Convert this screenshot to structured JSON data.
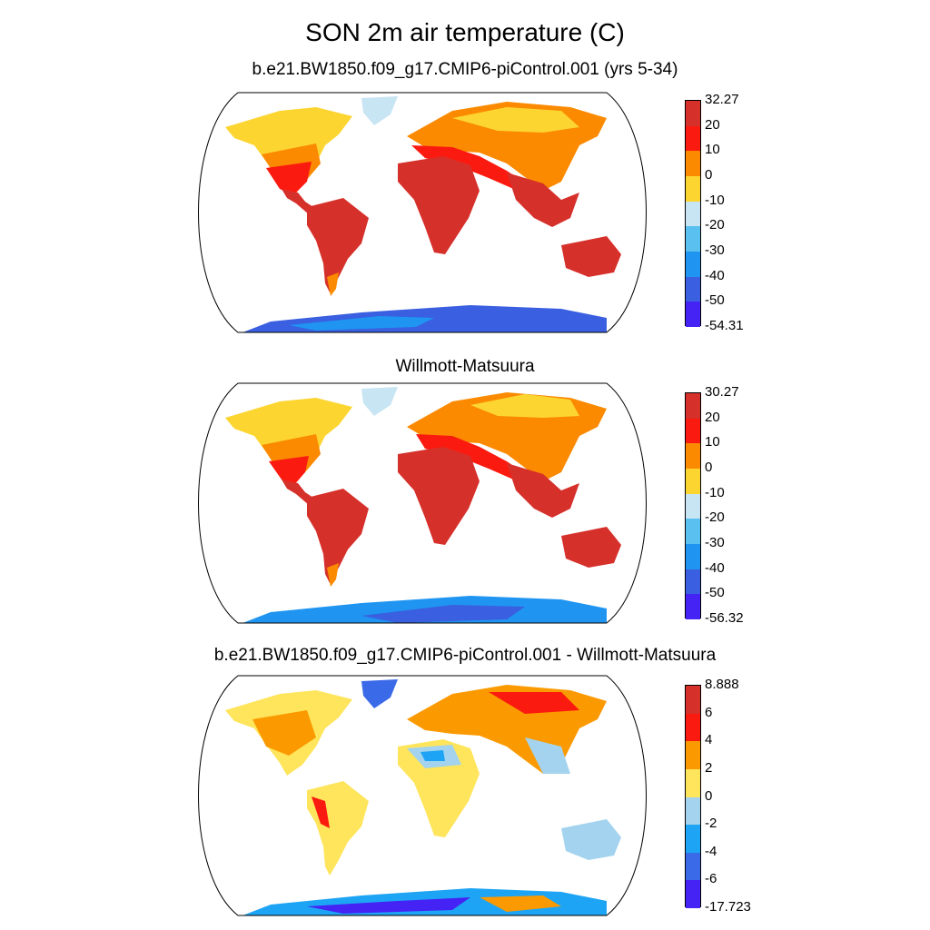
{
  "title": "SON 2m air temperature (C)",
  "panels": [
    {
      "subtitle": "b.e21.BW1850.f09_g17.CMIP6-piControl.001 (yrs 5-34)",
      "colorbar": {
        "labels": [
          "32.27",
          "20",
          "10",
          "0",
          "-10",
          "-20",
          "-30",
          "-40",
          "-50",
          "-54.31"
        ],
        "colors": [
          "#d6302b",
          "#fb1a0f",
          "#fb8a00",
          "#fdd531",
          "#c8e5f4",
          "#5ac0f0",
          "#1f95f1",
          "#3a5fe0",
          "#4423f4"
        ]
      }
    },
    {
      "subtitle": "Willmott-Matsuura",
      "colorbar": {
        "labels": [
          "30.27",
          "20",
          "10",
          "0",
          "-10",
          "-20",
          "-30",
          "-40",
          "-50",
          "-56.32"
        ],
        "colors": [
          "#d6302b",
          "#fb1a0f",
          "#fb8a00",
          "#fdd531",
          "#c8e5f4",
          "#5ac0f0",
          "#1f95f1",
          "#3a5fe0",
          "#4423f4"
        ]
      }
    },
    {
      "subtitle": "b.e21.BW1850.f09_g17.CMIP6-piControl.001 - Willmott-Matsuura",
      "colorbar": {
        "labels": [
          "8.888",
          "6",
          "4",
          "2",
          "0",
          "-2",
          "-4",
          "-6",
          "-17.723"
        ],
        "colors": [
          "#d6302b",
          "#fb1a0f",
          "#fb9a00",
          "#fee55c",
          "#a3d3ee",
          "#1ea4f4",
          "#3a6ae8",
          "#4423f4"
        ]
      }
    }
  ]
}
